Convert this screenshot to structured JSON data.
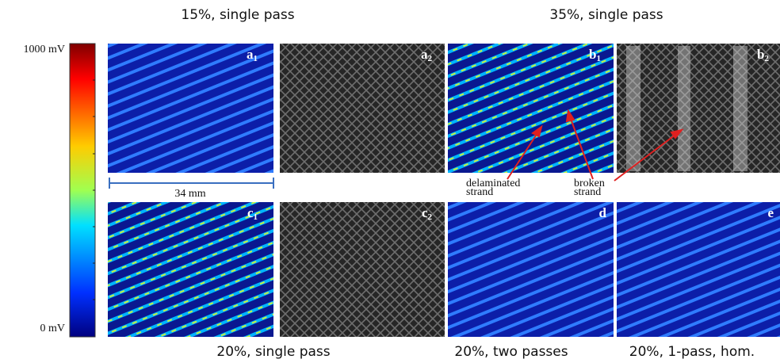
{
  "captions": {
    "top": [
      "15%, single pass",
      "35%, single pass"
    ],
    "bottom": [
      "20%, single pass",
      "20%, two passes",
      "20%, 1-pass, hom."
    ]
  },
  "colorbar": {
    "max_label": "1000 mV",
    "min_label": "0 mV"
  },
  "scale_bar": "34 mm",
  "panels": [
    {
      "letter": "a",
      "sub": "1"
    },
    {
      "letter": "a",
      "sub": "2"
    },
    {
      "letter": "b",
      "sub": "1"
    },
    {
      "letter": "b",
      "sub": "2"
    },
    {
      "letter": "c",
      "sub": "1"
    },
    {
      "letter": "c",
      "sub": "2"
    },
    {
      "letter": "d"
    },
    {
      "letter": "e"
    }
  ],
  "annotations": [
    {
      "lines": [
        "delaminated",
        "strand"
      ]
    },
    {
      "lines": [
        "broken",
        "strand"
      ]
    }
  ]
}
